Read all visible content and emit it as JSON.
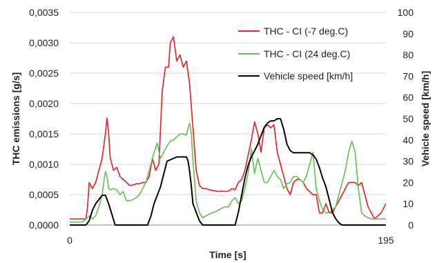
{
  "chart_data": {
    "type": "line",
    "title": "",
    "xlabel": "Time [s]",
    "ylabel": "THC emissions [g/s]",
    "y2label": "Vehicle speed [km/h]",
    "xlim": [
      0,
      195
    ],
    "ylim": [
      0,
      0.0035
    ],
    "y2lim": [
      0,
      100
    ],
    "x_ticks": [
      "0",
      "195"
    ],
    "y_ticks": [
      "0,0000",
      "0,0005",
      "0,0010",
      "0,0015",
      "0,0020",
      "0,0025",
      "0,0030",
      "0,0035"
    ],
    "y2_ticks": [
      "0",
      "10",
      "20",
      "30",
      "40",
      "50",
      "60",
      "70",
      "80",
      "90",
      "100"
    ],
    "grid": true,
    "legend_position": "top-right",
    "series": [
      {
        "name": "THC - CI (-7 deg.C)",
        "color": "#e8262a",
        "axis": "left",
        "x": [
          0,
          10,
          11,
          12,
          14,
          16,
          18,
          20,
          22,
          23,
          24,
          25,
          27,
          29,
          31,
          33,
          35,
          37,
          39,
          41,
          43,
          45,
          47,
          49,
          51,
          53,
          55,
          57,
          59,
          61,
          62,
          64,
          66,
          68,
          70,
          72,
          74,
          76,
          78,
          80,
          82,
          84,
          86,
          88,
          90,
          92,
          94,
          96,
          98,
          100,
          102,
          104,
          106,
          108,
          110,
          112,
          114,
          116,
          118,
          120,
          122,
          124,
          126,
          128,
          130,
          132,
          134,
          136,
          138,
          140,
          142,
          144,
          146,
          148,
          150,
          152,
          154,
          156,
          158,
          160,
          162,
          164,
          166,
          168,
          170,
          172,
          174,
          176,
          178,
          180,
          182,
          184,
          186,
          188,
          190,
          192,
          195
        ],
        "values": [
          0.0001,
          0.0001,
          0.0003,
          0.0007,
          0.0006,
          0.0007,
          0.0009,
          0.0011,
          0.0015,
          0.00176,
          0.0015,
          0.0011,
          0.0009,
          0.00095,
          0.0008,
          0.00075,
          0.0007,
          0.00065,
          0.00066,
          0.00068,
          0.00068,
          0.0007,
          0.0007,
          0.0008,
          0.0011,
          0.0009,
          0.001,
          0.0022,
          0.0026,
          0.0026,
          0.003,
          0.0031,
          0.0027,
          0.0028,
          0.0026,
          0.0027,
          0.0023,
          0.0016,
          0.0009,
          0.00065,
          0.0006,
          0.0006,
          0.00058,
          0.00057,
          0.00056,
          0.00055,
          0.00056,
          0.00055,
          0.00056,
          0.0006,
          0.00058,
          0.0007,
          0.00075,
          0.0009,
          0.00115,
          0.0014,
          0.0017,
          0.0015,
          0.0012,
          0.0016,
          0.00165,
          0.0016,
          0.00165,
          0.0012,
          0.001,
          0.0008,
          0.0006,
          0.0005,
          0.0007,
          0.00075,
          0.00075,
          0.0007,
          0.0006,
          0.00055,
          0.0005,
          0.0005,
          0.0002,
          0.0002,
          0.00035,
          0.0002,
          0.0002,
          0.0003,
          0.0004,
          0.0005,
          0.0006,
          0.0007,
          0.0007,
          0.0007,
          0.00065,
          0.0007,
          0.0005,
          0.0003,
          0.0002,
          0.0001,
          0.00015,
          0.0002,
          0.00035
        ]
      },
      {
        "name": "THC - CI (24 deg.C)",
        "color": "#6cbf5c",
        "axis": "left",
        "x": [
          0,
          8,
          10,
          12,
          14,
          16,
          18,
          20,
          21,
          22,
          23,
          24,
          25,
          27,
          29,
          31,
          33,
          35,
          37,
          39,
          41,
          43,
          45,
          47,
          49,
          51,
          53,
          54,
          55,
          56,
          58,
          60,
          62,
          64,
          66,
          68,
          70,
          72,
          73,
          74,
          75,
          76,
          78,
          80,
          82,
          84,
          86,
          88,
          90,
          92,
          94,
          96,
          98,
          100,
          102,
          104,
          106,
          108,
          110,
          112,
          114,
          116,
          118,
          120,
          122,
          124,
          126,
          128,
          130,
          132,
          134,
          136,
          138,
          140,
          142,
          144,
          146,
          148,
          150,
          152,
          154,
          156,
          158,
          160,
          162,
          164,
          166,
          168,
          170,
          172,
          174,
          176,
          178,
          180,
          182,
          184,
          186,
          188,
          190,
          192,
          195
        ],
        "values": [
          5e-05,
          5e-05,
          0.0001,
          0.00015,
          0.0001,
          0.00015,
          0.0003,
          0.0005,
          0.0007,
          0.00088,
          0.0008,
          0.0006,
          0.00058,
          0.0006,
          0.00058,
          0.0005,
          0.00055,
          0.0004,
          0.0004,
          0.00042,
          0.00045,
          0.0005,
          0.0006,
          0.0007,
          0.0009,
          0.0011,
          0.00128,
          0.00135,
          0.0012,
          0.0011,
          0.0012,
          0.0013,
          0.00138,
          0.0014,
          0.00145,
          0.0015,
          0.0015,
          0.00148,
          0.0016,
          0.00168,
          0.0015,
          0.00105,
          0.0004,
          0.0002,
          0.00012,
          0.00015,
          0.00018,
          0.0002,
          0.00022,
          0.00025,
          0.00028,
          0.0003,
          0.0003,
          0.0004,
          0.00045,
          0.00035,
          0.0004,
          0.0006,
          0.00085,
          0.00125,
          0.00085,
          0.0011,
          0.0009,
          0.0007,
          0.0007,
          0.0008,
          0.0009,
          0.0008,
          0.00075,
          0.0006,
          0.00068,
          0.0007,
          0.0008,
          0.0008,
          0.00075,
          0.0007,
          0.0008,
          0.001,
          0.0012,
          0.0006,
          0.0004,
          0.00025,
          0.0002,
          0.0002,
          0.00025,
          0.0003,
          0.0005,
          0.0007,
          0.0009,
          0.0012,
          0.00138,
          0.0012,
          0.0006,
          0.0002,
          0.00015,
          0.00012,
          0.0001,
          0.0001,
          0.0001,
          0.0001,
          0.0001
        ]
      },
      {
        "name": "Vehicle speed [km/h]",
        "color": "#000000",
        "axis": "right",
        "x": [
          0,
          10,
          12,
          14,
          16,
          18,
          20,
          22,
          24,
          26,
          28,
          30,
          35,
          40,
          45,
          48,
          50,
          52,
          54,
          56,
          58,
          60,
          63,
          66,
          69,
          72,
          73,
          74,
          75,
          76,
          78,
          80,
          82,
          85,
          90,
          95,
          100,
          102,
          104,
          106,
          108,
          110,
          112,
          114,
          116,
          118,
          120,
          122,
          124,
          126,
          128,
          130,
          132,
          134,
          136,
          138,
          140,
          142,
          145,
          148,
          150,
          152,
          154,
          156,
          158,
          160,
          162,
          164,
          166,
          168,
          170,
          172,
          174,
          176,
          178,
          180,
          182,
          184,
          186,
          188,
          190,
          192,
          195
        ],
        "values": [
          0,
          0,
          2,
          7,
          10,
          12,
          14,
          14,
          10,
          5,
          0,
          0,
          0,
          0,
          0,
          0,
          4,
          10,
          14,
          18,
          24,
          30,
          31,
          32,
          32,
          32,
          30,
          25,
          18,
          10,
          6,
          2,
          0,
          0,
          0,
          0,
          0,
          0,
          6,
          14,
          22,
          28,
          32,
          35,
          38,
          42,
          46,
          48,
          49,
          49,
          50,
          50,
          45,
          38,
          35,
          34,
          34,
          34,
          34,
          34,
          33,
          31,
          27,
          22,
          18,
          12,
          6,
          3,
          1,
          0,
          0,
          0,
          0,
          0,
          0,
          0,
          0,
          0,
          0,
          0,
          0,
          0,
          0
        ]
      }
    ]
  }
}
